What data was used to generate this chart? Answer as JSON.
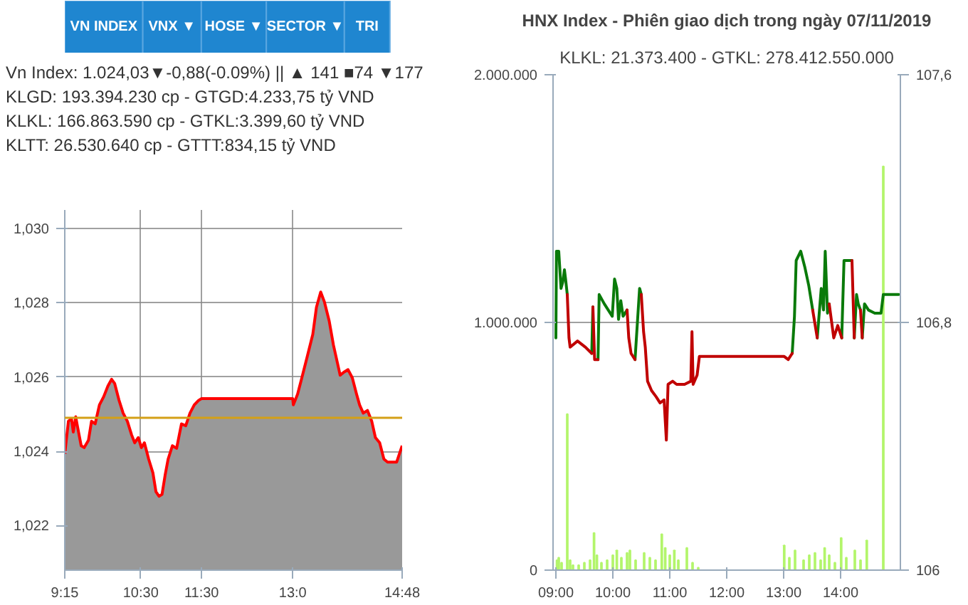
{
  "chart_data": [
    {
      "type": "other",
      "annotations": [
        "VN INDEX",
        "VNX ▼",
        "HOSE ▼",
        "SECTOR ▼",
        "TRI"
      ]
    },
    {
      "type": "area",
      "annotations": [
        "Vn Index: 1.024,03▼-0,88(-0.09%) || ▲ 141 ■74 ▼177",
        "KLGD: 193.394.230 cp - GTGD:4.233,75 tỷ VND",
        "KLKL: 166.863.590 cp - GTKL:3.399,60 tỷ VND",
        "KLTT: 26.530.640 cp - GTTT:834,15 tỷ VND"
      ],
      "x": [
        9.25,
        9.31,
        9.36,
        9.39,
        9.43,
        9.46,
        9.52,
        9.57,
        9.64,
        9.69,
        9.75,
        9.82,
        9.89,
        9.96,
        10.02,
        10.07,
        10.14,
        10.21,
        10.28,
        10.35,
        10.4,
        10.46,
        10.51,
        10.56,
        10.63,
        10.7,
        10.75,
        10.8,
        10.85,
        10.9,
        10.95,
        11.02,
        11.09,
        11.17,
        11.24,
        11.31,
        11.38,
        11.45,
        11.5,
        13.0,
        13.01,
        13.08,
        13.15,
        13.24,
        13.33,
        13.39,
        13.46,
        13.52,
        13.6,
        13.67,
        13.73,
        13.78,
        13.84,
        13.91,
        13.98,
        14.05,
        14.1,
        14.16,
        14.23,
        14.3,
        14.36,
        14.43,
        14.5,
        14.56,
        14.71,
        14.8
      ],
      "series": [
        {
          "type": "area",
          "color": "#ff0000",
          "values": [
            1023.93,
            1024.81,
            1024.88,
            1024.52,
            1024.93,
            1024.66,
            1024.15,
            1024.1,
            1024.3,
            1024.81,
            1024.74,
            1025.25,
            1025.47,
            1025.76,
            1025.94,
            1025.83,
            1025.39,
            1025.03,
            1024.81,
            1024.44,
            1024.23,
            1024.37,
            1024.1,
            1024.23,
            1023.79,
            1023.42,
            1022.91,
            1022.79,
            1022.84,
            1023.35,
            1023.79,
            1024.15,
            1024.08,
            1024.74,
            1024.69,
            1025.03,
            1025.25,
            1025.37,
            1025.42,
            1025.42,
            1025.25,
            1025.54,
            1025.98,
            1026.56,
            1027.15,
            1027.88,
            1028.29,
            1028.03,
            1027.51,
            1026.86,
            1026.42,
            1026.05,
            1026.13,
            1026.2,
            1025.98,
            1025.54,
            1025.25,
            1025.03,
            1025.1,
            1024.81,
            1024.37,
            1024.23,
            1023.79,
            1023.71,
            1023.71,
            1024.15
          ]
        }
      ],
      "xlim": [
        9.25,
        14.8
      ],
      "ylim": [
        1020.8,
        1030.5
      ],
      "xticks": [
        {
          "value": 9.25,
          "label": "9:15"
        },
        {
          "value": 10.5,
          "label": "10:30"
        },
        {
          "value": 11.5,
          "label": "11:30"
        },
        {
          "value": 13.0,
          "label": "13:0"
        },
        {
          "value": 14.8,
          "label": "14:48"
        }
      ],
      "yticks": [
        {
          "value": 1022,
          "label": "1,022"
        },
        {
          "value": 1024,
          "label": "1,024"
        },
        {
          "value": 1026,
          "label": "1,026"
        },
        {
          "value": 1028,
          "label": "1,028"
        },
        {
          "value": 1030,
          "label": "1,030"
        }
      ],
      "ref_lines": [
        {
          "axis": "y",
          "value": 1024.9,
          "color": "#d4a017"
        }
      ],
      "grid": true
    },
    {
      "type": "line",
      "title": "HNX Index - Phiên giao dịch trong ngày 07/11/2019",
      "subtitle": "KLKL: 21.373.400 - GTKL: 278.412.550.000",
      "series": [
        {
          "type": "bar",
          "color": "#b3f56b",
          "x": [
            9.02,
            9.05,
            9.1,
            9.2,
            9.25,
            9.3,
            9.4,
            9.5,
            9.6,
            9.67,
            9.72,
            9.8,
            9.9,
            10.0,
            10.07,
            10.15,
            10.25,
            10.3,
            10.4,
            10.55,
            10.65,
            10.75,
            10.86,
            10.92,
            11.0,
            11.08,
            11.15,
            11.3,
            11.4,
            11.5,
            13.01,
            13.1,
            13.2,
            13.35,
            13.45,
            13.55,
            13.65,
            13.72,
            13.8,
            13.9,
            14.01,
            14.1,
            14.25,
            14.35,
            14.46,
            14.75
          ],
          "values": [
            40000,
            50000,
            30000,
            630000,
            40000,
            20000,
            20000,
            30000,
            40000,
            150000,
            60000,
            30000,
            40000,
            60000,
            80000,
            50000,
            70000,
            80000,
            40000,
            70000,
            50000,
            40000,
            145000,
            90000,
            60000,
            80000,
            40000,
            90000,
            30000,
            10000,
            100000,
            50000,
            80000,
            40000,
            60000,
            70000,
            40000,
            90000,
            60000,
            30000,
            130000,
            50000,
            80000,
            40000,
            120000,
            1630000
          ]
        },
        {
          "type": "line",
          "axis": "y2",
          "color": "#0a7a0a",
          "x": [
            9.0,
            9.01,
            9.05,
            9.09,
            9.12,
            9.15,
            9.17,
            9.2
          ],
          "values": [
            106.75,
            107.03,
            107.03,
            106.91,
            106.93,
            106.97,
            106.94,
            106.89
          ]
        },
        {
          "type": "line",
          "axis": "y2",
          "color": "#0a7a0a",
          "x": [
            9.63,
            9.65
          ],
          "values": [
            106.7,
            106.85
          ]
        },
        {
          "type": "line",
          "axis": "y2",
          "color": "#0a7a0a",
          "x": [
            9.74,
            9.76,
            9.85,
            9.92,
            9.99,
            10.03,
            10.07,
            10.1,
            10.14,
            10.18,
            10.25
          ],
          "values": [
            106.68,
            106.89,
            106.86,
            106.84,
            106.82,
            106.94,
            106.91,
            106.81,
            106.87,
            106.82,
            106.84
          ]
        },
        {
          "type": "line",
          "axis": "y2",
          "color": "#0a7a0a",
          "x": [
            10.39,
            10.47,
            10.5
          ],
          "values": [
            106.68,
            106.91,
            106.89
          ]
        },
        {
          "type": "line",
          "axis": "y2",
          "color": "#0a7a0a",
          "x": [
            13.15,
            13.19,
            13.22,
            13.3,
            13.37,
            13.44,
            13.51
          ],
          "values": [
            106.7,
            106.82,
            107.0,
            107.03,
            106.98,
            106.92,
            106.84
          ]
        },
        {
          "type": "line",
          "axis": "y2",
          "color": "#0a7a0a",
          "x": [
            13.59,
            13.66,
            13.7,
            13.73,
            13.77,
            13.8
          ],
          "values": [
            106.75,
            106.91,
            106.84,
            107.03,
            106.83,
            106.86
          ]
        },
        {
          "type": "line",
          "axis": "y2",
          "color": "#0a7a0a",
          "x": [
            14.02,
            14.06,
            14.2
          ],
          "values": [
            106.75,
            107.0,
            107.0
          ]
        },
        {
          "type": "line",
          "axis": "y2",
          "color": "#0a7a0a",
          "x": [
            14.24,
            14.28,
            14.31,
            14.35
          ],
          "values": [
            106.75,
            106.89,
            106.86,
            106.84
          ]
        },
        {
          "type": "line",
          "axis": "y2",
          "color": "#0a7a0a",
          "x": [
            14.38,
            14.42,
            14.49,
            14.6,
            14.71,
            14.75,
            15.02
          ],
          "values": [
            106.75,
            106.86,
            106.84,
            106.83,
            106.83,
            106.89,
            106.89
          ]
        },
        {
          "type": "line",
          "axis": "y2",
          "color": "#c00000",
          "x": [
            9.2,
            9.23,
            9.25,
            9.38,
            9.52,
            9.63
          ],
          "values": [
            106.89,
            106.75,
            106.72,
            106.74,
            106.72,
            106.7
          ]
        },
        {
          "type": "line",
          "axis": "y2",
          "color": "#c00000",
          "x": [
            9.65,
            9.68,
            9.74
          ],
          "values": [
            106.85,
            106.68,
            106.68
          ]
        },
        {
          "type": "line",
          "axis": "y2",
          "color": "#c00000",
          "x": [
            10.25,
            10.28,
            10.32,
            10.39
          ],
          "values": [
            106.84,
            106.75,
            106.7,
            106.68
          ]
        },
        {
          "type": "line",
          "axis": "y2",
          "color": "#c00000",
          "x": [
            10.5,
            10.54,
            10.57,
            10.61,
            10.68,
            10.76,
            10.83,
            10.9,
            10.94,
            10.97,
            11.05,
            11.12,
            11.26,
            11.37,
            11.39,
            11.41,
            11.48,
            11.52,
            13.01,
            13.08,
            13.15
          ],
          "values": [
            106.89,
            106.77,
            106.72,
            106.61,
            106.58,
            106.56,
            106.54,
            106.55,
            106.42,
            106.6,
            106.61,
            106.6,
            106.6,
            106.61,
            106.77,
            106.6,
            106.63,
            106.69,
            106.69,
            106.68,
            106.7
          ]
        },
        {
          "type": "line",
          "axis": "y2",
          "color": "#c00000",
          "x": [
            13.51,
            13.59
          ],
          "values": [
            106.84,
            106.75
          ]
        },
        {
          "type": "line",
          "axis": "y2",
          "color": "#c00000",
          "x": [
            13.8,
            13.88,
            13.95,
            14.02
          ],
          "values": [
            106.86,
            106.75,
            106.79,
            106.75
          ]
        },
        {
          "type": "line",
          "axis": "y2",
          "color": "#c00000",
          "x": [
            14.2,
            14.24
          ],
          "values": [
            107.0,
            106.75
          ]
        },
        {
          "type": "line",
          "axis": "y2",
          "color": "#c00000",
          "x": [
            14.35,
            14.38
          ],
          "values": [
            106.84,
            106.75
          ]
        }
      ],
      "xlim": [
        8.95,
        15.05
      ],
      "ylim": [
        0,
        2000000
      ],
      "y2lim": [
        106,
        107.6
      ],
      "xticks": [
        {
          "value": 9,
          "label": "09:00"
        },
        {
          "value": 10,
          "label": "10:00"
        },
        {
          "value": 11,
          "label": "11:00"
        },
        {
          "value": 12,
          "label": "12:00"
        },
        {
          "value": 13,
          "label": "13:00"
        },
        {
          "value": 14,
          "label": "14:00"
        }
      ],
      "yticks": [
        0,
        {
          "value": 1000000,
          "label": "1.000.000"
        },
        {
          "value": 2000000,
          "label": "2.000.000"
        }
      ],
      "y2ticks": [
        106,
        {
          "value": 106.8,
          "label": "106,8"
        },
        {
          "value": 107.6,
          "label": "107,6"
        }
      ],
      "grid": "y"
    }
  ]
}
